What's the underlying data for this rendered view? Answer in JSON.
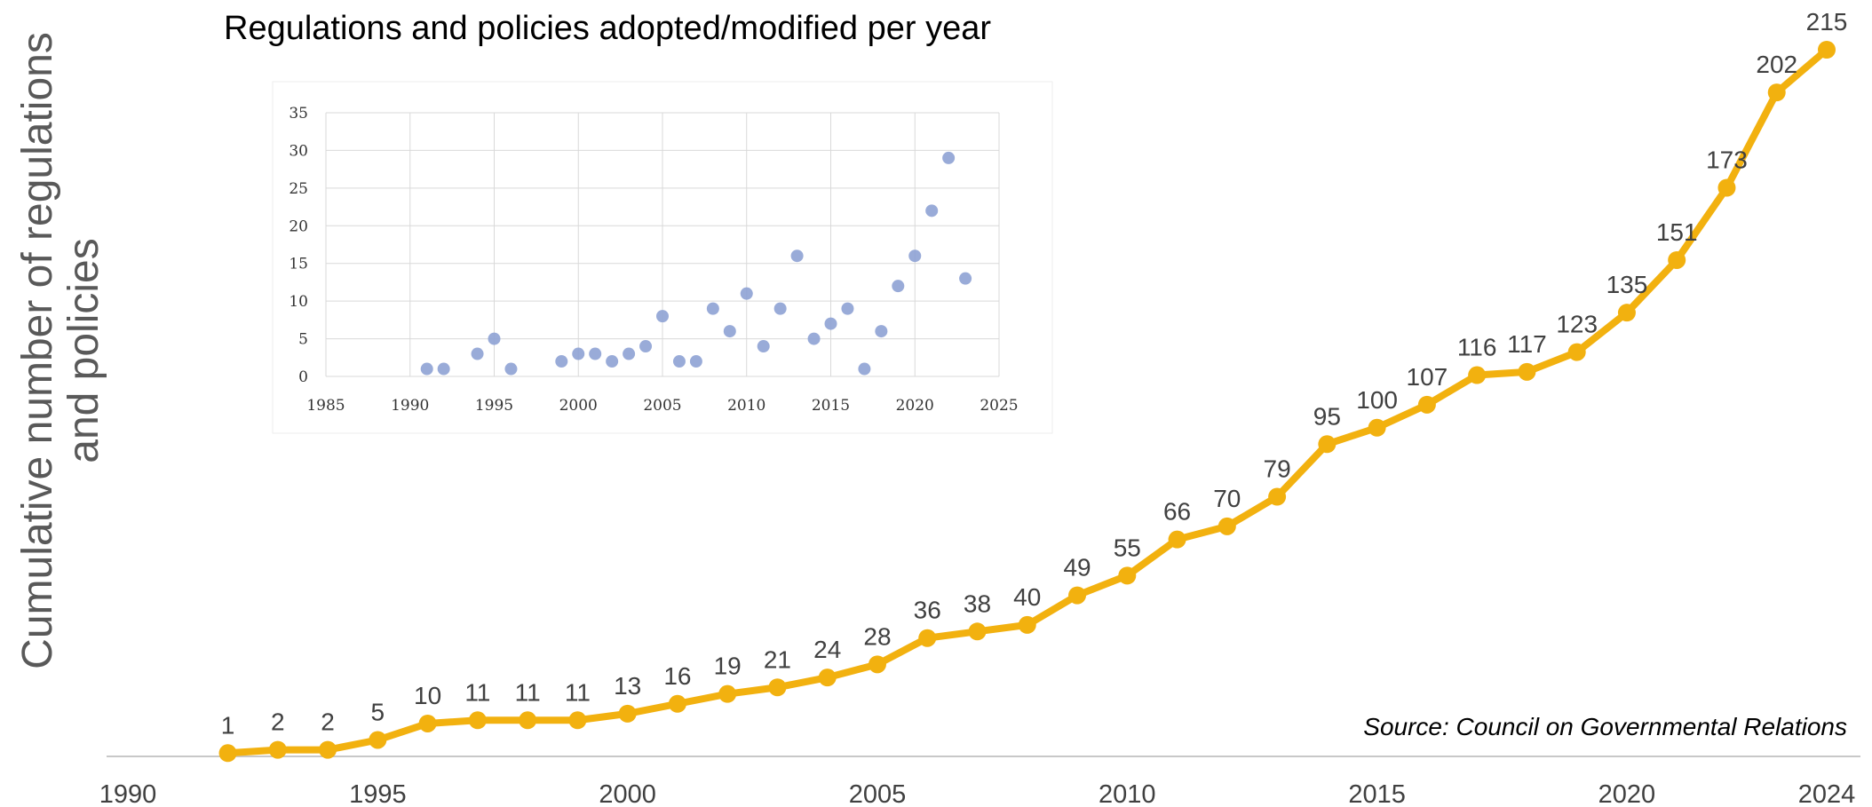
{
  "colors": {
    "main_line": "#F2B10F",
    "inset_points": "#8EA2D4",
    "axis": "#c8c8c8",
    "text": "#404040"
  },
  "source_note": "Source: Council on Governmental Relations",
  "chart_data": [
    {
      "type": "line",
      "ylabel": "Cumulative number of regulations and policies",
      "ylabel_lines": [
        "Cumulative number of regulations",
        "and policies"
      ],
      "xlabel": "",
      "xlim": [
        1990,
        2024
      ],
      "ylim": [
        0,
        215
      ],
      "x_ticks": [
        1990,
        1995,
        2000,
        2005,
        2010,
        2015,
        2020,
        2024
      ],
      "grid": false,
      "series": [
        {
          "x": [
            1992,
            1993,
            1994,
            1995,
            1996,
            1997,
            1998,
            1999,
            2000,
            2001,
            2002,
            2003,
            2004,
            2005,
            2006,
            2007,
            2008,
            2009,
            2010,
            2011,
            2012,
            2013,
            2014,
            2015,
            2016,
            2017,
            2018,
            2019,
            2020,
            2021,
            2022,
            2023,
            2024
          ],
          "values": [
            1,
            2,
            2,
            5,
            10,
            11,
            11,
            11,
            13,
            16,
            19,
            21,
            24,
            28,
            36,
            38,
            40,
            49,
            55,
            66,
            70,
            79,
            95,
            100,
            107,
            116,
            117,
            123,
            135,
            151,
            173,
            202,
            215
          ]
        }
      ]
    },
    {
      "type": "scatter",
      "title": "Regulations and policies adopted/modified per year",
      "xlim": [
        1985,
        2025
      ],
      "ylim": [
        0,
        35
      ],
      "x_ticks": [
        1985,
        1990,
        1995,
        2000,
        2005,
        2010,
        2015,
        2020,
        2025
      ],
      "y_ticks": [
        0,
        5,
        10,
        15,
        20,
        25,
        30,
        35
      ],
      "grid": true,
      "series": [
        {
          "x": [
            1991,
            1992,
            1994,
            1995,
            1996,
            1999,
            2000,
            2001,
            2002,
            2003,
            2004,
            2005,
            2006,
            2007,
            2008,
            2009,
            2010,
            2011,
            2012,
            2013,
            2014,
            2015,
            2016,
            2017,
            2018,
            2019,
            2020,
            2021,
            2022,
            2023
          ],
          "values": [
            1,
            1,
            3,
            5,
            1,
            2,
            3,
            3,
            2,
            3,
            4,
            8,
            2,
            2,
            9,
            6,
            11,
            4,
            9,
            16,
            5,
            7,
            9,
            1,
            6,
            12,
            16,
            22,
            29,
            13
          ]
        }
      ]
    }
  ]
}
